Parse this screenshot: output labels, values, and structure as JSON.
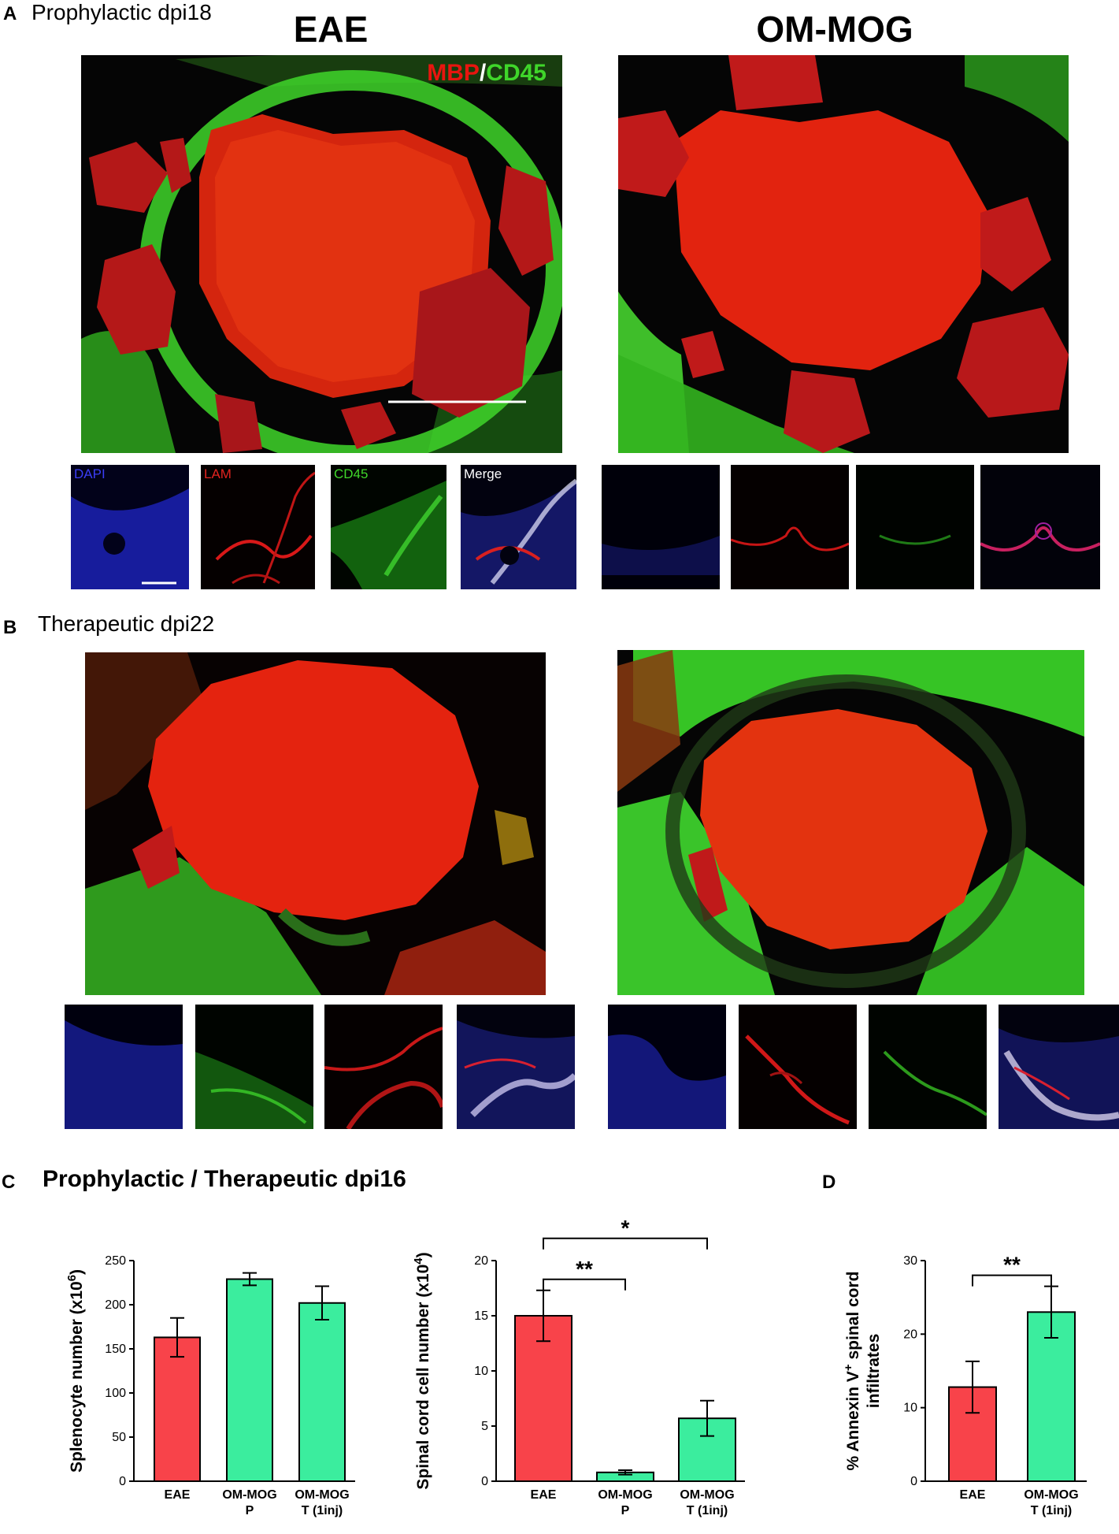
{
  "panel_a": {
    "letter": "A",
    "title": "Prophylactic dpi18",
    "col_left": "EAE",
    "col_right": "OM-MOG",
    "stain_mbp": "MBP",
    "stain_sep": "/",
    "stain_cd45": "CD45",
    "inset_dapi": "DAPI",
    "inset_lam": "LAM",
    "inset_cd45": "CD45",
    "inset_merge": "Merge"
  },
  "panel_b": {
    "letter": "B",
    "title": "Therapeutic dpi22"
  },
  "panel_c": {
    "letter": "C",
    "title": "Prophylactic / Therapeutic dpi16"
  },
  "panel_d": {
    "letter": "D"
  },
  "colors": {
    "eae_bar": "#f8434a",
    "ommog_bar": "#3bed9e",
    "mbp_red": "#e8150f",
    "cd45_green": "#3fd62a",
    "dapi_blue": "#2a2cf0"
  },
  "chart_data": [
    {
      "type": "bar",
      "categories": [
        "EAE",
        "OM-MOG\nP",
        "OM-MOG\nT (1inj)"
      ],
      "category_lines": [
        [
          "EAE"
        ],
        [
          "OM-MOG",
          "P"
        ],
        [
          "OM-MOG",
          "T (1inj)"
        ]
      ],
      "values": [
        163,
        229,
        202
      ],
      "errors": [
        22,
        7,
        19
      ],
      "bar_colors": [
        "#f8434a",
        "#3bed9e",
        "#3bed9e"
      ],
      "ylabel_main": "Splenocyte number (x10",
      "ylabel_sup": "6",
      "ylabel_end": ")",
      "ylim": [
        0,
        250
      ],
      "yticks": [
        "0",
        "50",
        "100",
        "150",
        "200",
        "250"
      ],
      "significance": []
    },
    {
      "type": "bar",
      "categories": [
        "EAE",
        "OM-MOG\nP",
        "OM-MOG\nT (1inj)"
      ],
      "category_lines": [
        [
          "EAE"
        ],
        [
          "OM-MOG",
          "P"
        ],
        [
          "OM-MOG",
          "T (1inj)"
        ]
      ],
      "values": [
        15.0,
        0.8,
        5.7
      ],
      "errors": [
        2.3,
        0.2,
        1.6
      ],
      "bar_colors": [
        "#f8434a",
        "#3bed9e",
        "#3bed9e"
      ],
      "ylabel_main": "Spinal cord cell number (x10",
      "ylabel_sup": "4",
      "ylabel_end": ")",
      "ylim": [
        0,
        20
      ],
      "yticks": [
        "0",
        "5",
        "10",
        "15",
        "20"
      ],
      "significance": [
        {
          "from": 0,
          "to": 1,
          "label": "**"
        },
        {
          "from": 0,
          "to": 2,
          "label": "*"
        }
      ]
    },
    {
      "type": "bar",
      "categories": [
        "EAE",
        "OM-MOG\nT (1inj)"
      ],
      "category_lines": [
        [
          "EAE"
        ],
        [
          "OM-MOG",
          "T (1inj)"
        ]
      ],
      "values": [
        12.8,
        23.0
      ],
      "errors": [
        3.5,
        3.5
      ],
      "bar_colors": [
        "#f8434a",
        "#3bed9e"
      ],
      "ylabel_main": "% Annexin V",
      "ylabel_sup": "+",
      "ylabel_end": " spinal cord",
      "ylabel_line2": "infiltrates",
      "ylim": [
        0,
        30
      ],
      "yticks": [
        "0",
        "10",
        "20",
        "30"
      ],
      "significance": [
        {
          "from": 0,
          "to": 1,
          "label": "**"
        }
      ]
    }
  ]
}
